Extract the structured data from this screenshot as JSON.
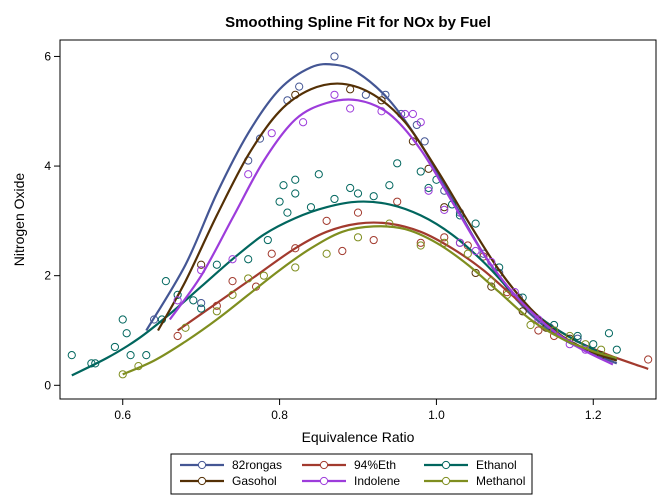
{
  "chart_data": {
    "type": "scatter",
    "title": "Smoothing Spline Fit for NOx by Fuel",
    "xlabel": "Equivalence Ratio",
    "ylabel": "Nitrogen Oxide",
    "xlim": [
      0.52,
      1.28
    ],
    "ylim": [
      -0.25,
      6.3
    ],
    "xticks": [
      "0.6",
      "0.8",
      "1.0",
      "1.2"
    ],
    "yticks": [
      "0",
      "2",
      "4",
      "6"
    ],
    "grid": false,
    "legend_position": "bottom",
    "series": [
      {
        "name": "82rongas",
        "color": "#445694",
        "points": [
          [
            0.64,
            1.2
          ],
          [
            0.7,
            1.5
          ],
          [
            0.76,
            4.1
          ],
          [
            0.775,
            4.5
          ],
          [
            0.81,
            5.2
          ],
          [
            0.825,
            5.45
          ],
          [
            0.87,
            6.0
          ],
          [
            0.91,
            5.3
          ],
          [
            0.935,
            5.3
          ],
          [
            0.955,
            4.95
          ],
          [
            0.975,
            4.75
          ],
          [
            0.985,
            4.45
          ],
          [
            1.01,
            3.55
          ],
          [
            1.03,
            3.15
          ],
          [
            1.06,
            2.4
          ],
          [
            1.08,
            2.05
          ],
          [
            1.105,
            1.6
          ],
          [
            1.145,
            1.05
          ],
          [
            1.18,
            0.85
          ]
        ],
        "curve": [
          [
            0.63,
            1.0
          ],
          [
            0.68,
            2.2
          ],
          [
            0.72,
            3.5
          ],
          [
            0.76,
            4.6
          ],
          [
            0.8,
            5.4
          ],
          [
            0.84,
            5.8
          ],
          [
            0.87,
            5.85
          ],
          [
            0.9,
            5.7
          ],
          [
            0.94,
            5.2
          ],
          [
            0.98,
            4.4
          ],
          [
            1.02,
            3.4
          ],
          [
            1.06,
            2.4
          ],
          [
            1.1,
            1.6
          ],
          [
            1.14,
            1.05
          ],
          [
            1.18,
            0.7
          ],
          [
            1.23,
            0.4
          ]
        ]
      },
      {
        "name": "94%Eth",
        "color": "#A23A2E",
        "points": [
          [
            0.67,
            0.9
          ],
          [
            0.72,
            1.45
          ],
          [
            0.74,
            1.9
          ],
          [
            0.77,
            1.8
          ],
          [
            0.79,
            2.4
          ],
          [
            0.82,
            2.5
          ],
          [
            0.86,
            3.0
          ],
          [
            0.88,
            2.45
          ],
          [
            0.9,
            3.15
          ],
          [
            0.92,
            2.65
          ],
          [
            0.95,
            3.35
          ],
          [
            0.98,
            2.6
          ],
          [
            1.01,
            2.7
          ],
          [
            1.04,
            2.55
          ],
          [
            1.06,
            2.35
          ],
          [
            1.09,
            1.7
          ],
          [
            1.13,
            1.0
          ],
          [
            1.15,
            0.9
          ],
          [
            1.27,
            0.47
          ]
        ],
        "curve": [
          [
            0.67,
            1.0
          ],
          [
            0.72,
            1.5
          ],
          [
            0.77,
            2.0
          ],
          [
            0.82,
            2.5
          ],
          [
            0.86,
            2.8
          ],
          [
            0.9,
            2.95
          ],
          [
            0.94,
            2.95
          ],
          [
            0.98,
            2.8
          ],
          [
            1.02,
            2.5
          ],
          [
            1.06,
            2.1
          ],
          [
            1.1,
            1.6
          ],
          [
            1.14,
            1.15
          ],
          [
            1.18,
            0.8
          ],
          [
            1.22,
            0.55
          ],
          [
            1.27,
            0.3
          ]
        ]
      },
      {
        "name": "Ethanol",
        "color": "#01665E",
        "points": [
          [
            0.535,
            0.55
          ],
          [
            0.56,
            0.4
          ],
          [
            0.565,
            0.4
          ],
          [
            0.59,
            0.7
          ],
          [
            0.6,
            1.2
          ],
          [
            0.605,
            0.95
          ],
          [
            0.61,
            0.55
          ],
          [
            0.63,
            0.55
          ],
          [
            0.65,
            1.2
          ],
          [
            0.655,
            1.9
          ],
          [
            0.67,
            1.65
          ],
          [
            0.69,
            1.55
          ],
          [
            0.7,
            1.4
          ],
          [
            0.72,
            2.2
          ],
          [
            0.76,
            2.3
          ],
          [
            0.785,
            2.65
          ],
          [
            0.8,
            3.35
          ],
          [
            0.805,
            3.65
          ],
          [
            0.81,
            3.15
          ],
          [
            0.82,
            3.75
          ],
          [
            0.82,
            3.5
          ],
          [
            0.84,
            3.25
          ],
          [
            0.85,
            3.85
          ],
          [
            0.87,
            3.4
          ],
          [
            0.89,
            3.6
          ],
          [
            0.9,
            3.5
          ],
          [
            0.92,
            3.45
          ],
          [
            0.94,
            3.65
          ],
          [
            0.95,
            4.05
          ],
          [
            0.98,
            3.9
          ],
          [
            0.99,
            3.6
          ],
          [
            1.0,
            3.75
          ],
          [
            1.02,
            3.3
          ],
          [
            1.03,
            3.1
          ],
          [
            1.05,
            2.95
          ],
          [
            1.08,
            2.15
          ],
          [
            1.11,
            1.6
          ],
          [
            1.15,
            1.1
          ],
          [
            1.18,
            0.9
          ],
          [
            1.2,
            0.75
          ],
          [
            1.22,
            0.95
          ],
          [
            1.23,
            0.65
          ]
        ],
        "curve": [
          [
            0.535,
            0.18
          ],
          [
            0.58,
            0.5
          ],
          [
            0.62,
            0.85
          ],
          [
            0.66,
            1.3
          ],
          [
            0.7,
            1.8
          ],
          [
            0.74,
            2.3
          ],
          [
            0.78,
            2.75
          ],
          [
            0.82,
            3.05
          ],
          [
            0.86,
            3.25
          ],
          [
            0.9,
            3.35
          ],
          [
            0.94,
            3.3
          ],
          [
            0.98,
            3.1
          ],
          [
            1.02,
            2.75
          ],
          [
            1.06,
            2.25
          ],
          [
            1.1,
            1.65
          ],
          [
            1.14,
            1.15
          ],
          [
            1.18,
            0.8
          ],
          [
            1.23,
            0.45
          ]
        ]
      },
      {
        "name": "Gasohol",
        "color": "#543005",
        "points": [
          [
            0.7,
            2.2
          ],
          [
            0.82,
            5.3
          ],
          [
            0.89,
            5.4
          ],
          [
            0.93,
            5.2
          ],
          [
            0.97,
            4.45
          ],
          [
            0.99,
            3.95
          ],
          [
            1.01,
            3.25
          ],
          [
            1.03,
            2.6
          ],
          [
            1.05,
            2.05
          ],
          [
            1.07,
            1.8
          ],
          [
            1.11,
            1.35
          ],
          [
            1.14,
            1.05
          ],
          [
            1.17,
            0.85
          ],
          [
            1.21,
            0.55
          ]
        ],
        "curve": [
          [
            0.645,
            1.0
          ],
          [
            0.68,
            1.9
          ],
          [
            0.72,
            3.1
          ],
          [
            0.76,
            4.2
          ],
          [
            0.8,
            5.0
          ],
          [
            0.84,
            5.4
          ],
          [
            0.88,
            5.5
          ],
          [
            0.92,
            5.3
          ],
          [
            0.96,
            4.8
          ],
          [
            1.0,
            3.95
          ],
          [
            1.04,
            3.0
          ],
          [
            1.08,
            2.1
          ],
          [
            1.12,
            1.4
          ],
          [
            1.16,
            0.9
          ],
          [
            1.2,
            0.6
          ],
          [
            1.23,
            0.45
          ]
        ]
      },
      {
        "name": "Indolene",
        "color": "#9D3CDB",
        "points": [
          [
            0.67,
            1.55
          ],
          [
            0.7,
            2.1
          ],
          [
            0.74,
            2.3
          ],
          [
            0.76,
            3.85
          ],
          [
            0.79,
            4.6
          ],
          [
            0.83,
            4.8
          ],
          [
            0.87,
            5.3
          ],
          [
            0.89,
            5.05
          ],
          [
            0.93,
            5.0
          ],
          [
            0.96,
            4.95
          ],
          [
            0.97,
            4.95
          ],
          [
            0.98,
            4.8
          ],
          [
            0.99,
            3.55
          ],
          [
            1.01,
            3.2
          ],
          [
            1.03,
            2.6
          ],
          [
            1.05,
            2.45
          ],
          [
            1.07,
            2.25
          ],
          [
            1.1,
            1.7
          ],
          [
            1.13,
            1.2
          ],
          [
            1.17,
            0.75
          ],
          [
            1.19,
            0.65
          ]
        ],
        "curve": [
          [
            0.66,
            1.2
          ],
          [
            0.7,
            2.0
          ],
          [
            0.74,
            3.05
          ],
          [
            0.78,
            4.1
          ],
          [
            0.82,
            4.85
          ],
          [
            0.86,
            5.15
          ],
          [
            0.9,
            5.2
          ],
          [
            0.94,
            4.95
          ],
          [
            0.98,
            4.3
          ],
          [
            1.02,
            3.35
          ],
          [
            1.06,
            2.4
          ],
          [
            1.1,
            1.65
          ],
          [
            1.14,
            1.1
          ],
          [
            1.18,
            0.7
          ],
          [
            1.225,
            0.38
          ]
        ]
      },
      {
        "name": "Methanol",
        "color": "#7F8E1F",
        "points": [
          [
            0.6,
            0.2
          ],
          [
            0.62,
            0.35
          ],
          [
            0.68,
            1.05
          ],
          [
            0.72,
            1.35
          ],
          [
            0.74,
            1.65
          ],
          [
            0.76,
            1.95
          ],
          [
            0.78,
            2.0
          ],
          [
            0.82,
            2.15
          ],
          [
            0.86,
            2.4
          ],
          [
            0.9,
            2.7
          ],
          [
            0.94,
            2.95
          ],
          [
            0.98,
            2.55
          ],
          [
            1.01,
            2.6
          ],
          [
            1.04,
            2.4
          ],
          [
            1.07,
            1.9
          ],
          [
            1.09,
            1.65
          ],
          [
            1.12,
            1.1
          ],
          [
            1.15,
            1.0
          ],
          [
            1.17,
            0.9
          ],
          [
            1.19,
            0.75
          ],
          [
            1.21,
            0.65
          ]
        ],
        "curve": [
          [
            0.6,
            0.2
          ],
          [
            0.64,
            0.45
          ],
          [
            0.68,
            0.8
          ],
          [
            0.72,
            1.2
          ],
          [
            0.76,
            1.65
          ],
          [
            0.8,
            2.1
          ],
          [
            0.84,
            2.5
          ],
          [
            0.88,
            2.8
          ],
          [
            0.92,
            2.9
          ],
          [
            0.96,
            2.85
          ],
          [
            1.0,
            2.6
          ],
          [
            1.04,
            2.2
          ],
          [
            1.08,
            1.7
          ],
          [
            1.12,
            1.2
          ],
          [
            1.16,
            0.85
          ],
          [
            1.2,
            0.62
          ],
          [
            1.23,
            0.5
          ]
        ]
      }
    ]
  }
}
